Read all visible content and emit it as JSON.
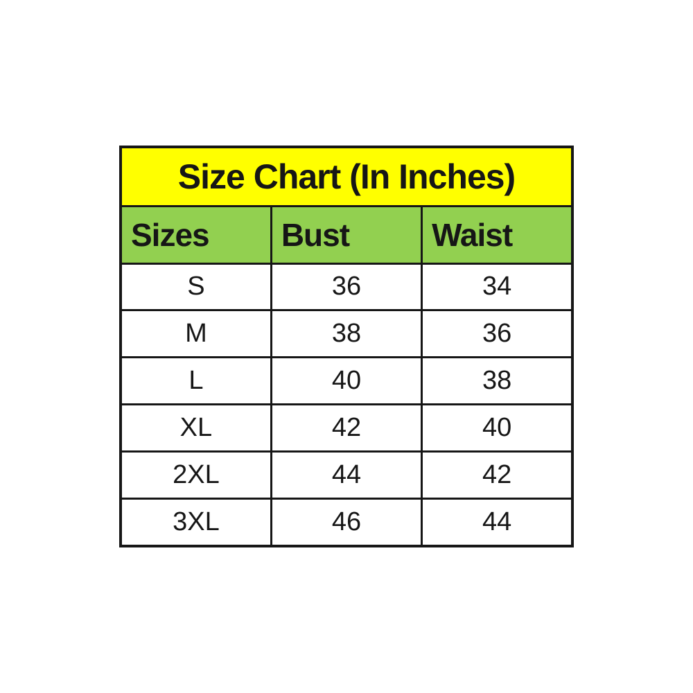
{
  "chart_data": {
    "type": "table",
    "title": "Size Chart (In Inches)",
    "columns": [
      "Sizes",
      "Bust",
      "Waist"
    ],
    "rows": [
      [
        "S",
        36,
        34
      ],
      [
        "M",
        38,
        36
      ],
      [
        "L",
        40,
        38
      ],
      [
        "XL",
        42,
        40
      ],
      [
        "2XL",
        44,
        42
      ],
      [
        "3XL",
        46,
        44
      ]
    ]
  },
  "colors": {
    "title_bg": "#FFFF00",
    "header_bg": "#92D050",
    "border": "#161616",
    "text": "#161616",
    "row_bg": "#FFFFFF",
    "page_bg": "#FFFFFF"
  }
}
